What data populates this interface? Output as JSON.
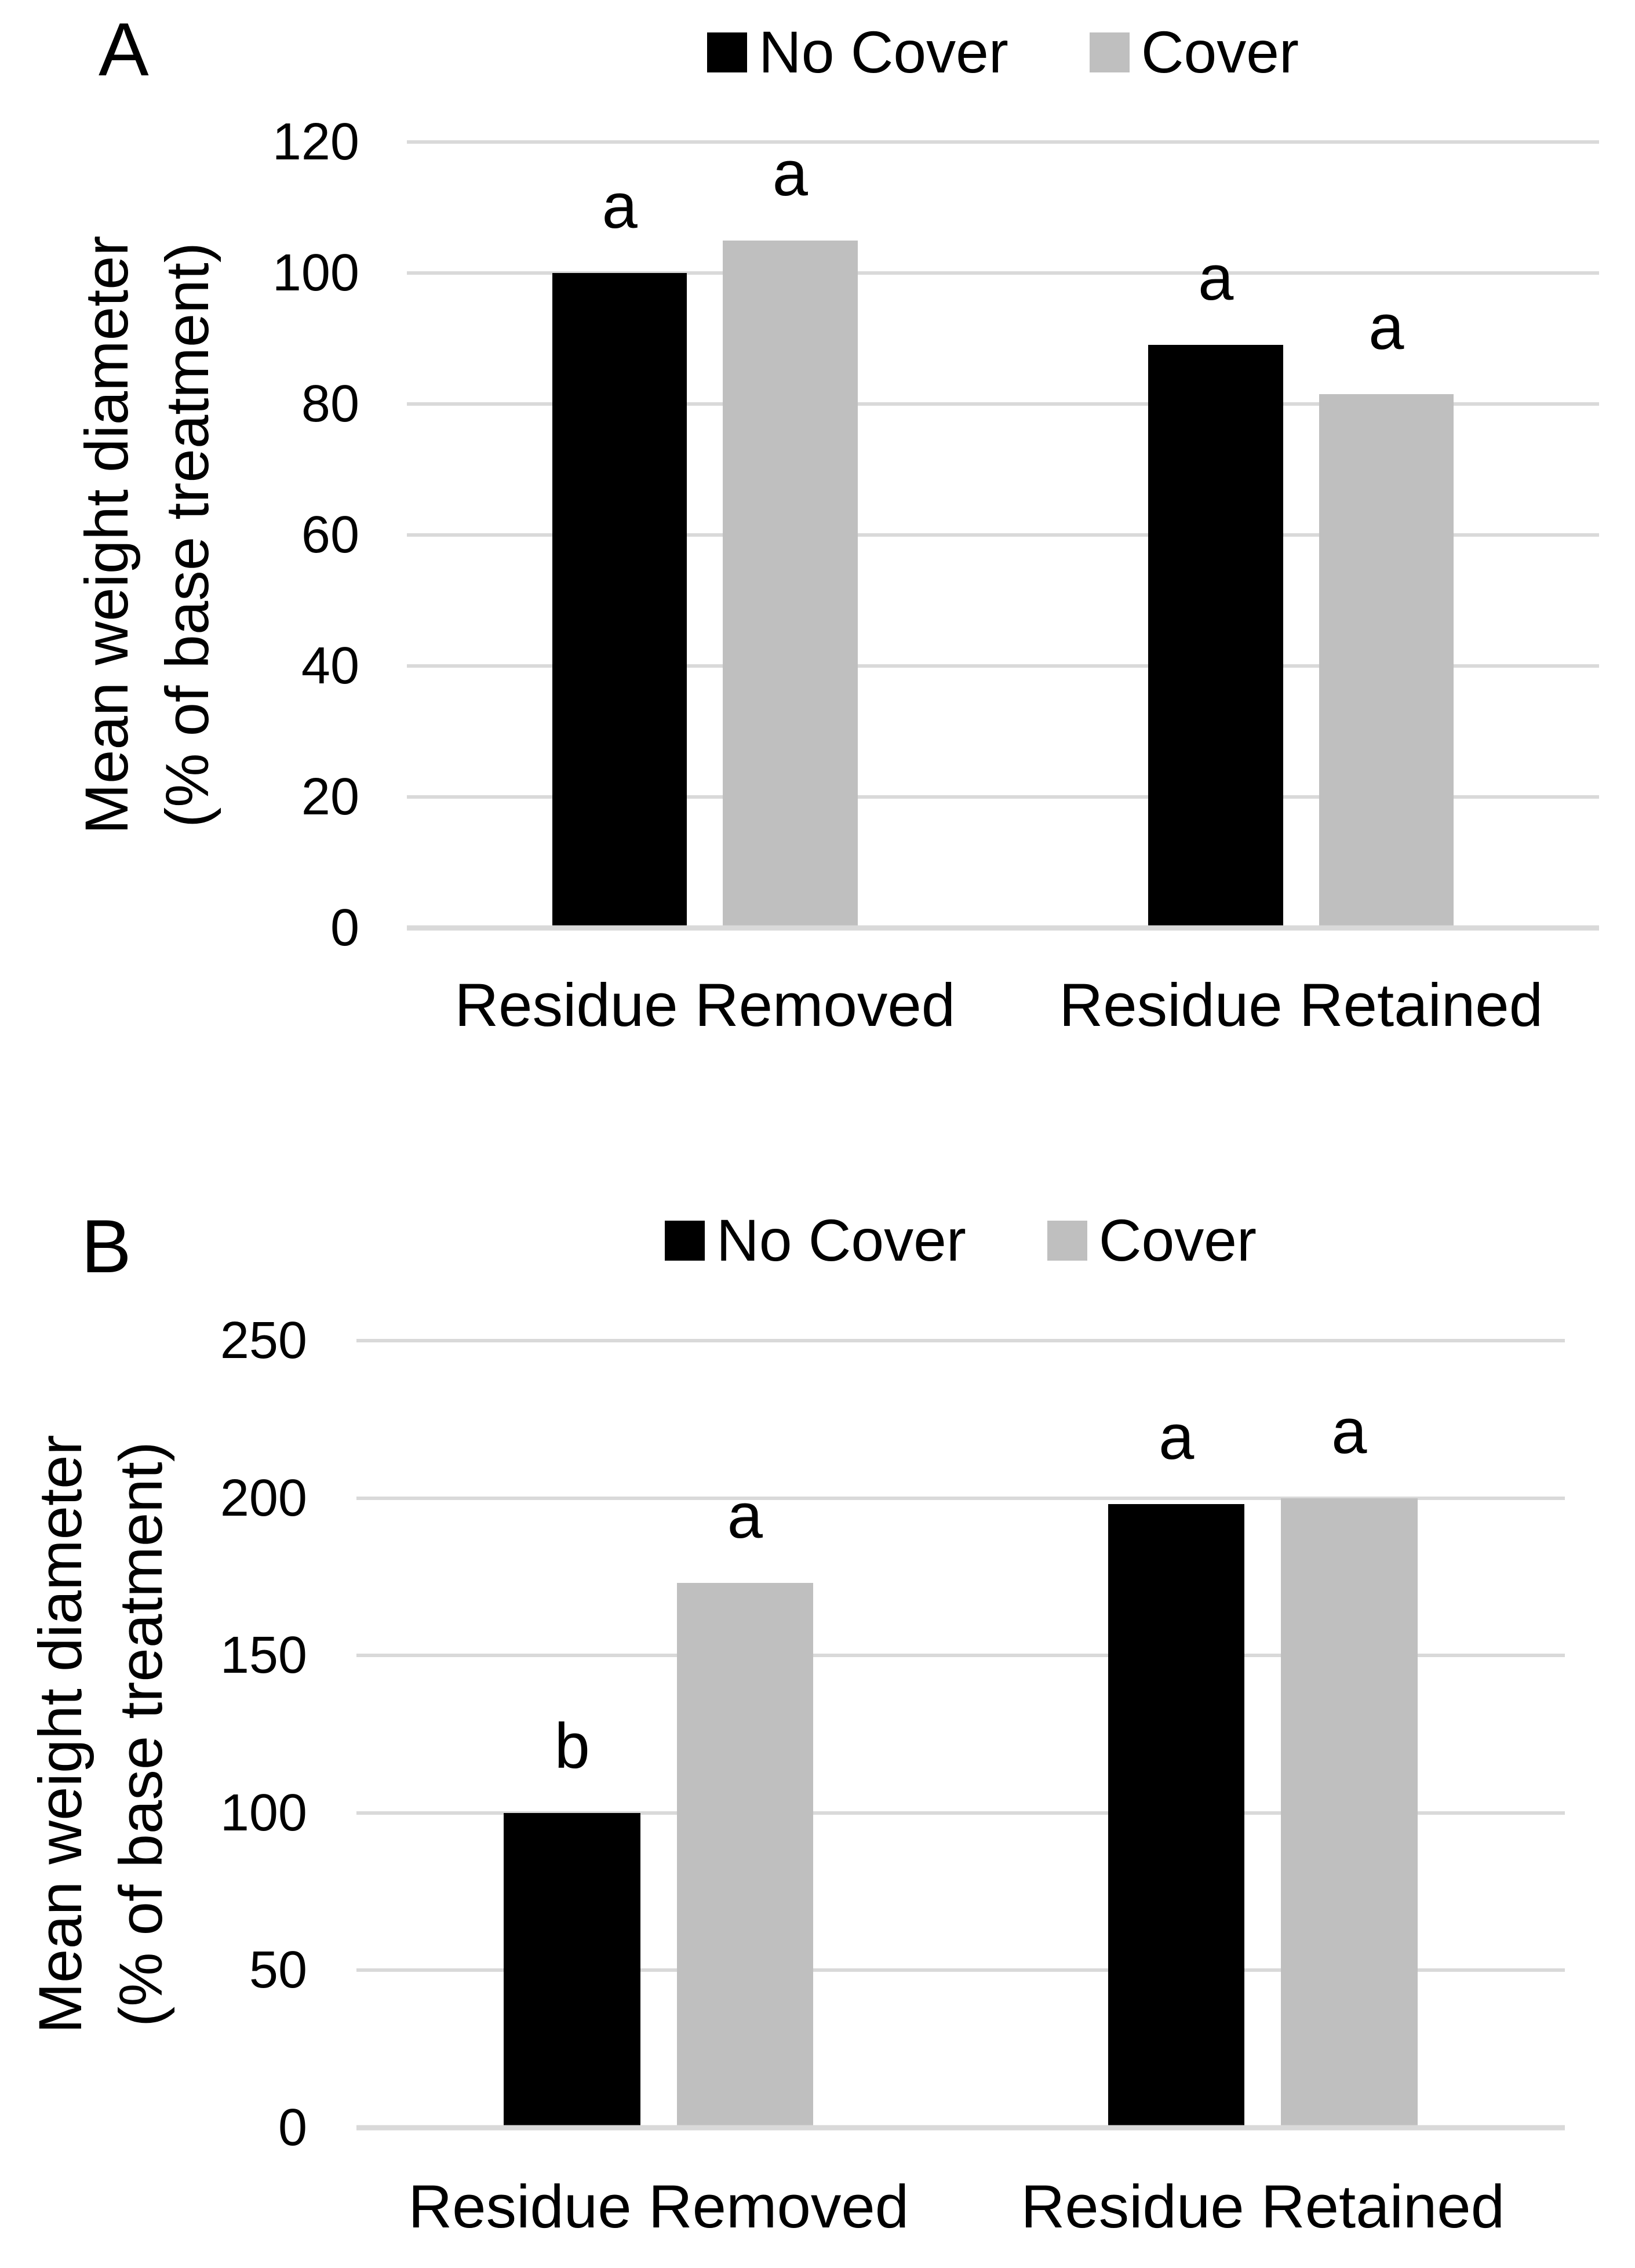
{
  "page": {
    "background": "#ffffff",
    "gridline_color": "#d9d9d9"
  },
  "chart_data": [
    {
      "panel": "A",
      "type": "bar",
      "categories": [
        "Residue Removed",
        "Residue Retained"
      ],
      "series": [
        {
          "name": "No Cover",
          "color": "#000000",
          "values": [
            100,
            89
          ],
          "sig_letters": [
            "a",
            "a"
          ]
        },
        {
          "name": "Cover",
          "color": "#bfbfbf",
          "values": [
            105,
            81.5
          ],
          "sig_letters": [
            "a",
            "a"
          ]
        }
      ],
      "ylabel_lines": [
        "Mean weight diameter",
        "(% of base treatment)"
      ],
      "xlabel": "",
      "ylim": [
        0,
        120
      ],
      "yticks": [
        0,
        20,
        40,
        60,
        80,
        100,
        120
      ],
      "grid": true,
      "legend_position": "top"
    },
    {
      "panel": "B",
      "type": "bar",
      "categories": [
        "Residue Removed",
        "Residue Retained"
      ],
      "series": [
        {
          "name": "No Cover",
          "color": "#000000",
          "values": [
            100,
            198
          ],
          "sig_letters": [
            "b",
            "a"
          ]
        },
        {
          "name": "Cover",
          "color": "#bfbfbf",
          "values": [
            173,
            200
          ],
          "sig_letters": [
            "a",
            "a"
          ]
        }
      ],
      "ylabel_lines": [
        "Mean weight diameter",
        "(% of base treatment)"
      ],
      "xlabel": "",
      "ylim": [
        0,
        250
      ],
      "yticks": [
        0,
        50,
        100,
        150,
        200,
        250
      ],
      "grid": true,
      "legend_position": "top"
    }
  ]
}
